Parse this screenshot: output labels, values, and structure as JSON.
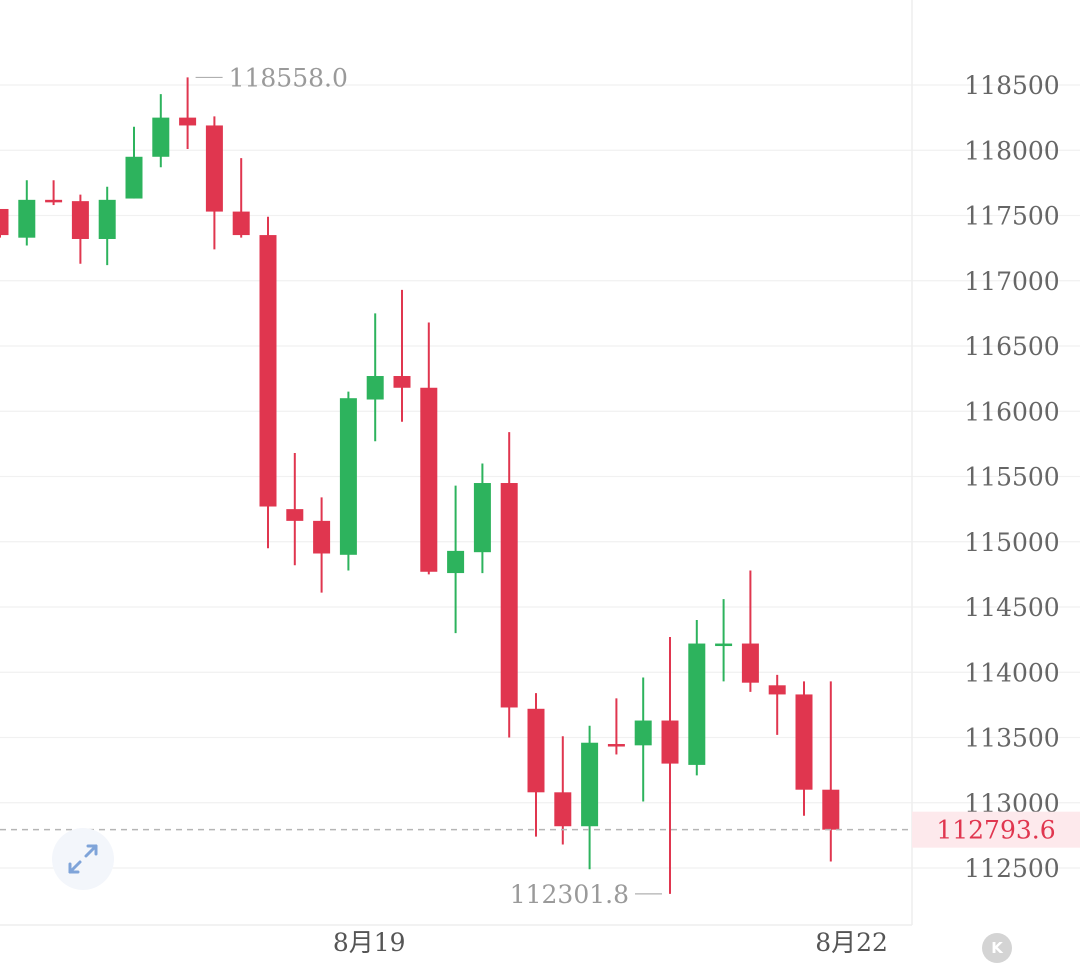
{
  "chart_data": {
    "type": "candlestick",
    "up_color": "#2db35d",
    "down_color": "#e0364f",
    "y_axis": {
      "ticks": [
        112500,
        113000,
        113500,
        114000,
        114500,
        115000,
        115500,
        116000,
        116500,
        117000,
        117500,
        118000,
        118500
      ],
      "tick_labels": [
        "112500",
        "113000",
        "113500",
        "114000",
        "114500",
        "115000",
        "115500",
        "116000",
        "116500",
        "117000",
        "117500",
        "118000",
        "118500"
      ],
      "position": "right"
    },
    "x_axis": {
      "labels": [
        {
          "text": "8月19",
          "index": 14
        },
        {
          "text": "8月22",
          "index": 32
        }
      ]
    },
    "grid": true,
    "candles": [
      {
        "o": 117550,
        "h": 117550,
        "l": 117330,
        "c": 117350
      },
      {
        "o": 117330,
        "h": 117770,
        "l": 117270,
        "c": 117620
      },
      {
        "o": 117620,
        "h": 117770,
        "l": 117580,
        "c": 117610
      },
      {
        "o": 117610,
        "h": 117660,
        "l": 117130,
        "c": 117320
      },
      {
        "o": 117320,
        "h": 117720,
        "l": 117120,
        "c": 117620
      },
      {
        "o": 117630,
        "h": 118180,
        "l": 117630,
        "c": 117950
      },
      {
        "o": 117950,
        "h": 118430,
        "l": 117870,
        "c": 118250
      },
      {
        "o": 118250,
        "h": 118558,
        "l": 118010,
        "c": 118190
      },
      {
        "o": 118190,
        "h": 118260,
        "l": 117240,
        "c": 117530
      },
      {
        "o": 117530,
        "h": 117940,
        "l": 117330,
        "c": 117350
      },
      {
        "o": 117350,
        "h": 117490,
        "l": 114950,
        "c": 115270
      },
      {
        "o": 115250,
        "h": 115680,
        "l": 114820,
        "c": 115160
      },
      {
        "o": 115160,
        "h": 115340,
        "l": 114610,
        "c": 114910
      },
      {
        "o": 114900,
        "h": 116150,
        "l": 114780,
        "c": 116100
      },
      {
        "o": 116090,
        "h": 116750,
        "l": 115770,
        "c": 116270
      },
      {
        "o": 116270,
        "h": 116930,
        "l": 115920,
        "c": 116180
      },
      {
        "o": 116180,
        "h": 116680,
        "l": 114750,
        "c": 114770
      },
      {
        "o": 114760,
        "h": 115430,
        "l": 114300,
        "c": 114930
      },
      {
        "o": 114920,
        "h": 115600,
        "l": 114760,
        "c": 115450
      },
      {
        "o": 115450,
        "h": 115840,
        "l": 113500,
        "c": 113730
      },
      {
        "o": 113720,
        "h": 113840,
        "l": 112740,
        "c": 113080
      },
      {
        "o": 113080,
        "h": 113510,
        "l": 112680,
        "c": 112820
      },
      {
        "o": 112820,
        "h": 113590,
        "l": 112490,
        "c": 113460
      },
      {
        "o": 113450,
        "h": 113800,
        "l": 113370,
        "c": 113440
      },
      {
        "o": 113440,
        "h": 113960,
        "l": 113010,
        "c": 113630
      },
      {
        "o": 113630,
        "h": 114270,
        "l": 112301.8,
        "c": 113300
      },
      {
        "o": 113290,
        "h": 114400,
        "l": 113210,
        "c": 114220
      },
      {
        "o": 114220,
        "h": 114560,
        "l": 113930,
        "c": 114220
      },
      {
        "o": 114220,
        "h": 114780,
        "l": 113850,
        "c": 113920
      },
      {
        "o": 113900,
        "h": 113980,
        "l": 113520,
        "c": 113830
      },
      {
        "o": 113830,
        "h": 113930,
        "l": 112900,
        "c": 113100
      },
      {
        "o": 113100,
        "h": 113930,
        "l": 112550,
        "c": 112793.6
      }
    ],
    "annotations": [
      {
        "label": "118558.0",
        "value": 118558.0,
        "candle_index": 7
      },
      {
        "label": "112301.8",
        "value": 112301.8,
        "candle_index": 25
      }
    ],
    "current_price": {
      "value": 112793.6,
      "label": "112793.6"
    }
  },
  "icons": {
    "expand": "expand-arrows-icon",
    "logo": "k-logo-icon"
  },
  "logo_text": "K"
}
